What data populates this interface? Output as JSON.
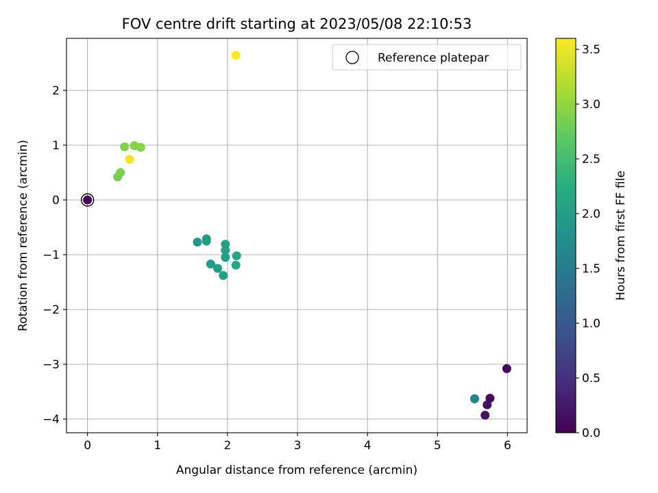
{
  "chart_data": {
    "type": "scatter",
    "title": "FOV centre drift starting at 2023/05/08 22:10:53",
    "xlabel": "Angular distance from reference (arcmin)",
    "ylabel": "Rotation from reference (arcmin)",
    "xlim": [
      -0.3,
      6.28
    ],
    "ylim": [
      -4.25,
      2.95
    ],
    "xticks": [
      0,
      1,
      2,
      3,
      4,
      5,
      6
    ],
    "yticks": [
      -4,
      -3,
      -2,
      -1,
      0,
      1,
      2
    ],
    "xtick_labels": [
      "0",
      "1",
      "2",
      "3",
      "4",
      "5",
      "6"
    ],
    "ytick_labels": [
      "−4",
      "−3",
      "−2",
      "−1",
      "0",
      "1",
      "2"
    ],
    "grid": true,
    "colormap": "viridis",
    "colorbar": {
      "label": "Hours from first FF file",
      "range": [
        0.0,
        3.6
      ],
      "ticks": [
        0.0,
        0.5,
        1.0,
        1.5,
        2.0,
        2.5,
        3.0,
        3.5
      ],
      "tick_labels": [
        "0.0",
        "0.5",
        "1.0",
        "1.5",
        "2.0",
        "2.5",
        "3.0",
        "3.5"
      ]
    },
    "legend": {
      "label": "Reference platepar",
      "position": "upper right"
    },
    "reference_point": {
      "x": 0,
      "y": 0
    },
    "points": [
      {
        "x": 5.99,
        "y": -3.08,
        "hours": 0.05
      },
      {
        "x": 5.75,
        "y": -3.62,
        "hours": 0.1
      },
      {
        "x": 5.71,
        "y": -3.74,
        "hours": 0.15
      },
      {
        "x": 5.68,
        "y": -3.93,
        "hours": 0.2
      },
      {
        "x": 5.53,
        "y": -3.63,
        "hours": 1.6
      },
      {
        "x": 5.53,
        "y": -3.63,
        "hours": 1.65
      },
      {
        "x": 1.57,
        "y": -0.77,
        "hours": 1.9
      },
      {
        "x": 1.7,
        "y": -0.71,
        "hours": 1.92
      },
      {
        "x": 1.7,
        "y": -0.75,
        "hours": 1.94
      },
      {
        "x": 1.76,
        "y": -1.17,
        "hours": 1.96
      },
      {
        "x": 1.86,
        "y": -1.25,
        "hours": 1.98
      },
      {
        "x": 1.94,
        "y": -1.38,
        "hours": 2.0
      },
      {
        "x": 1.97,
        "y": -0.81,
        "hours": 2.02
      },
      {
        "x": 1.97,
        "y": -0.92,
        "hours": 2.04
      },
      {
        "x": 1.97,
        "y": -1.05,
        "hours": 2.06
      },
      {
        "x": 2.13,
        "y": -1.02,
        "hours": 2.08
      },
      {
        "x": 2.12,
        "y": -1.19,
        "hours": 2.1
      },
      {
        "x": 0.43,
        "y": 0.42,
        "hours": 2.85
      },
      {
        "x": 0.47,
        "y": 0.5,
        "hours": 2.87
      },
      {
        "x": 0.53,
        "y": 0.97,
        "hours": 2.9
      },
      {
        "x": 0.67,
        "y": 0.99,
        "hours": 2.92
      },
      {
        "x": 0.76,
        "y": 0.96,
        "hours": 2.94
      },
      {
        "x": 0.6,
        "y": 0.74,
        "hours": 3.55
      },
      {
        "x": 2.12,
        "y": 2.64,
        "hours": 3.6
      },
      {
        "x": 0.0,
        "y": 0.0,
        "hours": 0.0
      }
    ]
  }
}
